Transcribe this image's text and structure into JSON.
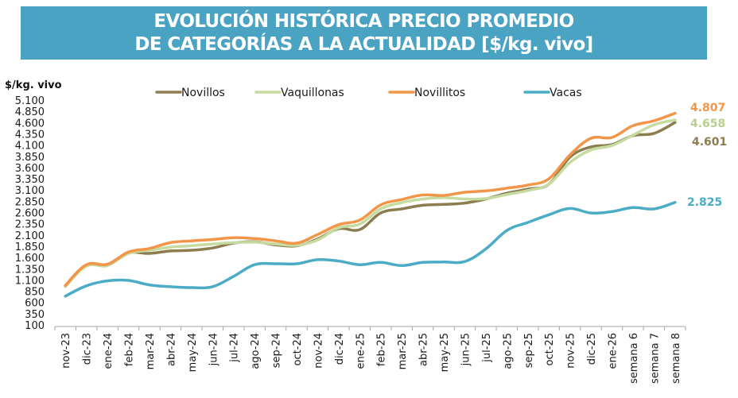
{
  "chart_data": {
    "type": "line",
    "title": "EVOLUCIÓN HISTÓRICA PRECIO PROMEDIO DE CATEGORÍAS A LA ACTUALIDAD [$/kg. vivo]",
    "title_lines": [
      "EVOLUCIÓN HISTÓRICA PRECIO PROMEDIO",
      "DE CATEGORÍAS A LA ACTUALIDAD [$/kg. vivo]"
    ],
    "xlabel": "",
    "ylabel": "$/kg. vivo",
    "ylim": [
      100,
      5100
    ],
    "yticks": [
      100,
      350,
      600,
      850,
      1100,
      1350,
      1600,
      1850,
      2100,
      2350,
      2600,
      2850,
      3100,
      3350,
      3600,
      3850,
      4100,
      4350,
      4600,
      4850,
      5100
    ],
    "ytick_labels": [
      "100",
      "350",
      "600",
      "850",
      "1.100",
      "1.350",
      "1.600",
      "1.850",
      "2.100",
      "2.350",
      "2.600",
      "2.850",
      "3.100",
      "3.350",
      "3.600",
      "3.850",
      "4.100",
      "4.350",
      "4.600",
      "4.850",
      "5.100"
    ],
    "grid": false,
    "legend_position": "top",
    "categories": [
      "nov-23",
      "dic-23",
      "ene-24",
      "feb-24",
      "mar-24",
      "abr-24",
      "may-24",
      "jun-24",
      "jul-24",
      "ago-24",
      "sep-24",
      "oct-24",
      "nov-24",
      "dic-24",
      "ene-25",
      "feb-25",
      "mar-25",
      "abr-25",
      "may-25",
      "jun-25",
      "jul-25",
      "ago-25",
      "sep-25",
      "oct-25",
      "nov-25",
      "dic-25",
      "ene-26",
      "semana 6",
      "semana 7",
      "semana 8"
    ],
    "series": [
      {
        "name": "Novillos",
        "color": "#8c7d4e",
        "values": [
          960,
          1420,
          1430,
          1700,
          1690,
          1745,
          1760,
          1810,
          1920,
          1950,
          1880,
          1860,
          2010,
          2240,
          2220,
          2590,
          2680,
          2760,
          2780,
          2810,
          2900,
          3030,
          3120,
          3230,
          3830,
          4060,
          4110,
          4310,
          4360,
          4601
        ],
        "end_label": "4.601"
      },
      {
        "name": "Vaquillonas",
        "color": "#c5dba0",
        "values": [
          950,
          1410,
          1420,
          1690,
          1760,
          1830,
          1860,
          1900,
          1930,
          1940,
          1900,
          1870,
          1990,
          2260,
          2340,
          2680,
          2820,
          2900,
          2930,
          2900,
          2910,
          3000,
          3090,
          3230,
          3710,
          3990,
          4090,
          4320,
          4550,
          4658
        ],
        "end_label": "4.658"
      },
      {
        "name": "Novillitos",
        "color": "#f39548",
        "values": [
          980,
          1440,
          1450,
          1720,
          1800,
          1930,
          1970,
          2000,
          2040,
          2020,
          1970,
          1920,
          2110,
          2330,
          2430,
          2770,
          2890,
          2990,
          2980,
          3050,
          3080,
          3140,
          3210,
          3350,
          3880,
          4250,
          4270,
          4530,
          4640,
          4807
        ],
        "end_label": "4.807"
      },
      {
        "name": "Vacas",
        "color": "#4bacc6",
        "values": [
          740,
          970,
          1080,
          1090,
          990,
          950,
          930,
          950,
          1180,
          1440,
          1460,
          1460,
          1550,
          1520,
          1440,
          1490,
          1420,
          1490,
          1500,
          1510,
          1790,
          2200,
          2380,
          2550,
          2690,
          2590,
          2620,
          2710,
          2680,
          2825
        ],
        "end_label": "2.825"
      }
    ]
  }
}
